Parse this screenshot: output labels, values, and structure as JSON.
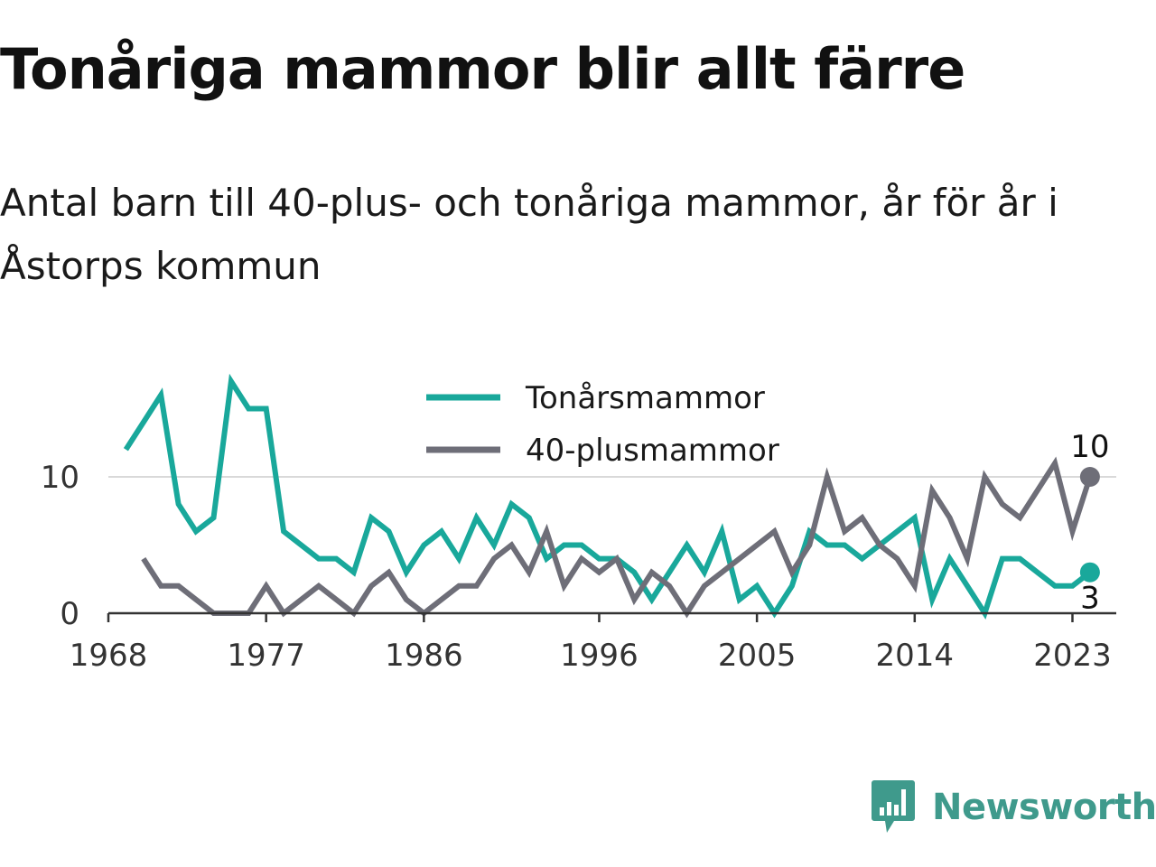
{
  "title": "Tonåriga mammor blir allt färre",
  "subtitle": "Antal barn till 40-plus- och tonåriga mammor, år för år i Åstorps kommun",
  "brand": {
    "name": "Newsworthy",
    "icon": "newsworthy-logo-icon",
    "color": "#3f9a8c"
  },
  "chart_data": {
    "type": "line",
    "x": [
      1969,
      1970,
      1971,
      1972,
      1973,
      1974,
      1975,
      1976,
      1977,
      1978,
      1979,
      1980,
      1981,
      1982,
      1983,
      1984,
      1985,
      1986,
      1987,
      1988,
      1989,
      1990,
      1991,
      1992,
      1993,
      1994,
      1995,
      1996,
      1997,
      1998,
      1999,
      2000,
      2001,
      2002,
      2003,
      2004,
      2005,
      2006,
      2007,
      2008,
      2009,
      2010,
      2011,
      2012,
      2013,
      2014,
      2015,
      2016,
      2017,
      2018,
      2019,
      2020,
      2021,
      2022,
      2023,
      2024
    ],
    "series": [
      {
        "name": "Tonårsmammor",
        "color": "#19a89b",
        "values": [
          12,
          14,
          16,
          8,
          6,
          7,
          17,
          15,
          15,
          6,
          5,
          4,
          4,
          3,
          7,
          6,
          3,
          5,
          6,
          4,
          7,
          5,
          8,
          7,
          4,
          5,
          5,
          4,
          4,
          3,
          1,
          3,
          5,
          3,
          6,
          1,
          2,
          0,
          2,
          6,
          5,
          5,
          4,
          5,
          6,
          7,
          1,
          4,
          2,
          0,
          4,
          4,
          3,
          2,
          2,
          3
        ]
      },
      {
        "name": "40-plusmammor",
        "color": "#6e6e78",
        "values": [
          null,
          4,
          2,
          2,
          1,
          0,
          0,
          0,
          2,
          0,
          1,
          2,
          1,
          0,
          2,
          3,
          1,
          0,
          1,
          2,
          2,
          4,
          5,
          3,
          6,
          2,
          4,
          3,
          4,
          1,
          3,
          2,
          0,
          2,
          3,
          4,
          5,
          6,
          3,
          5,
          10,
          6,
          7,
          5,
          4,
          2,
          9,
          7,
          4,
          10,
          8,
          7,
          9,
          11,
          6,
          10
        ]
      }
    ],
    "xticks": [
      1968,
      1977,
      1986,
      1996,
      2005,
      2014,
      2023
    ],
    "yticks": [
      0,
      10
    ],
    "xlim": [
      1968,
      2025.5
    ],
    "ylim": [
      0,
      17
    ],
    "end_labels": {
      "Tonårsmammor": "3",
      "40-plusmammor": "10"
    },
    "legend_position": "top-center",
    "grid": "horizontal"
  }
}
